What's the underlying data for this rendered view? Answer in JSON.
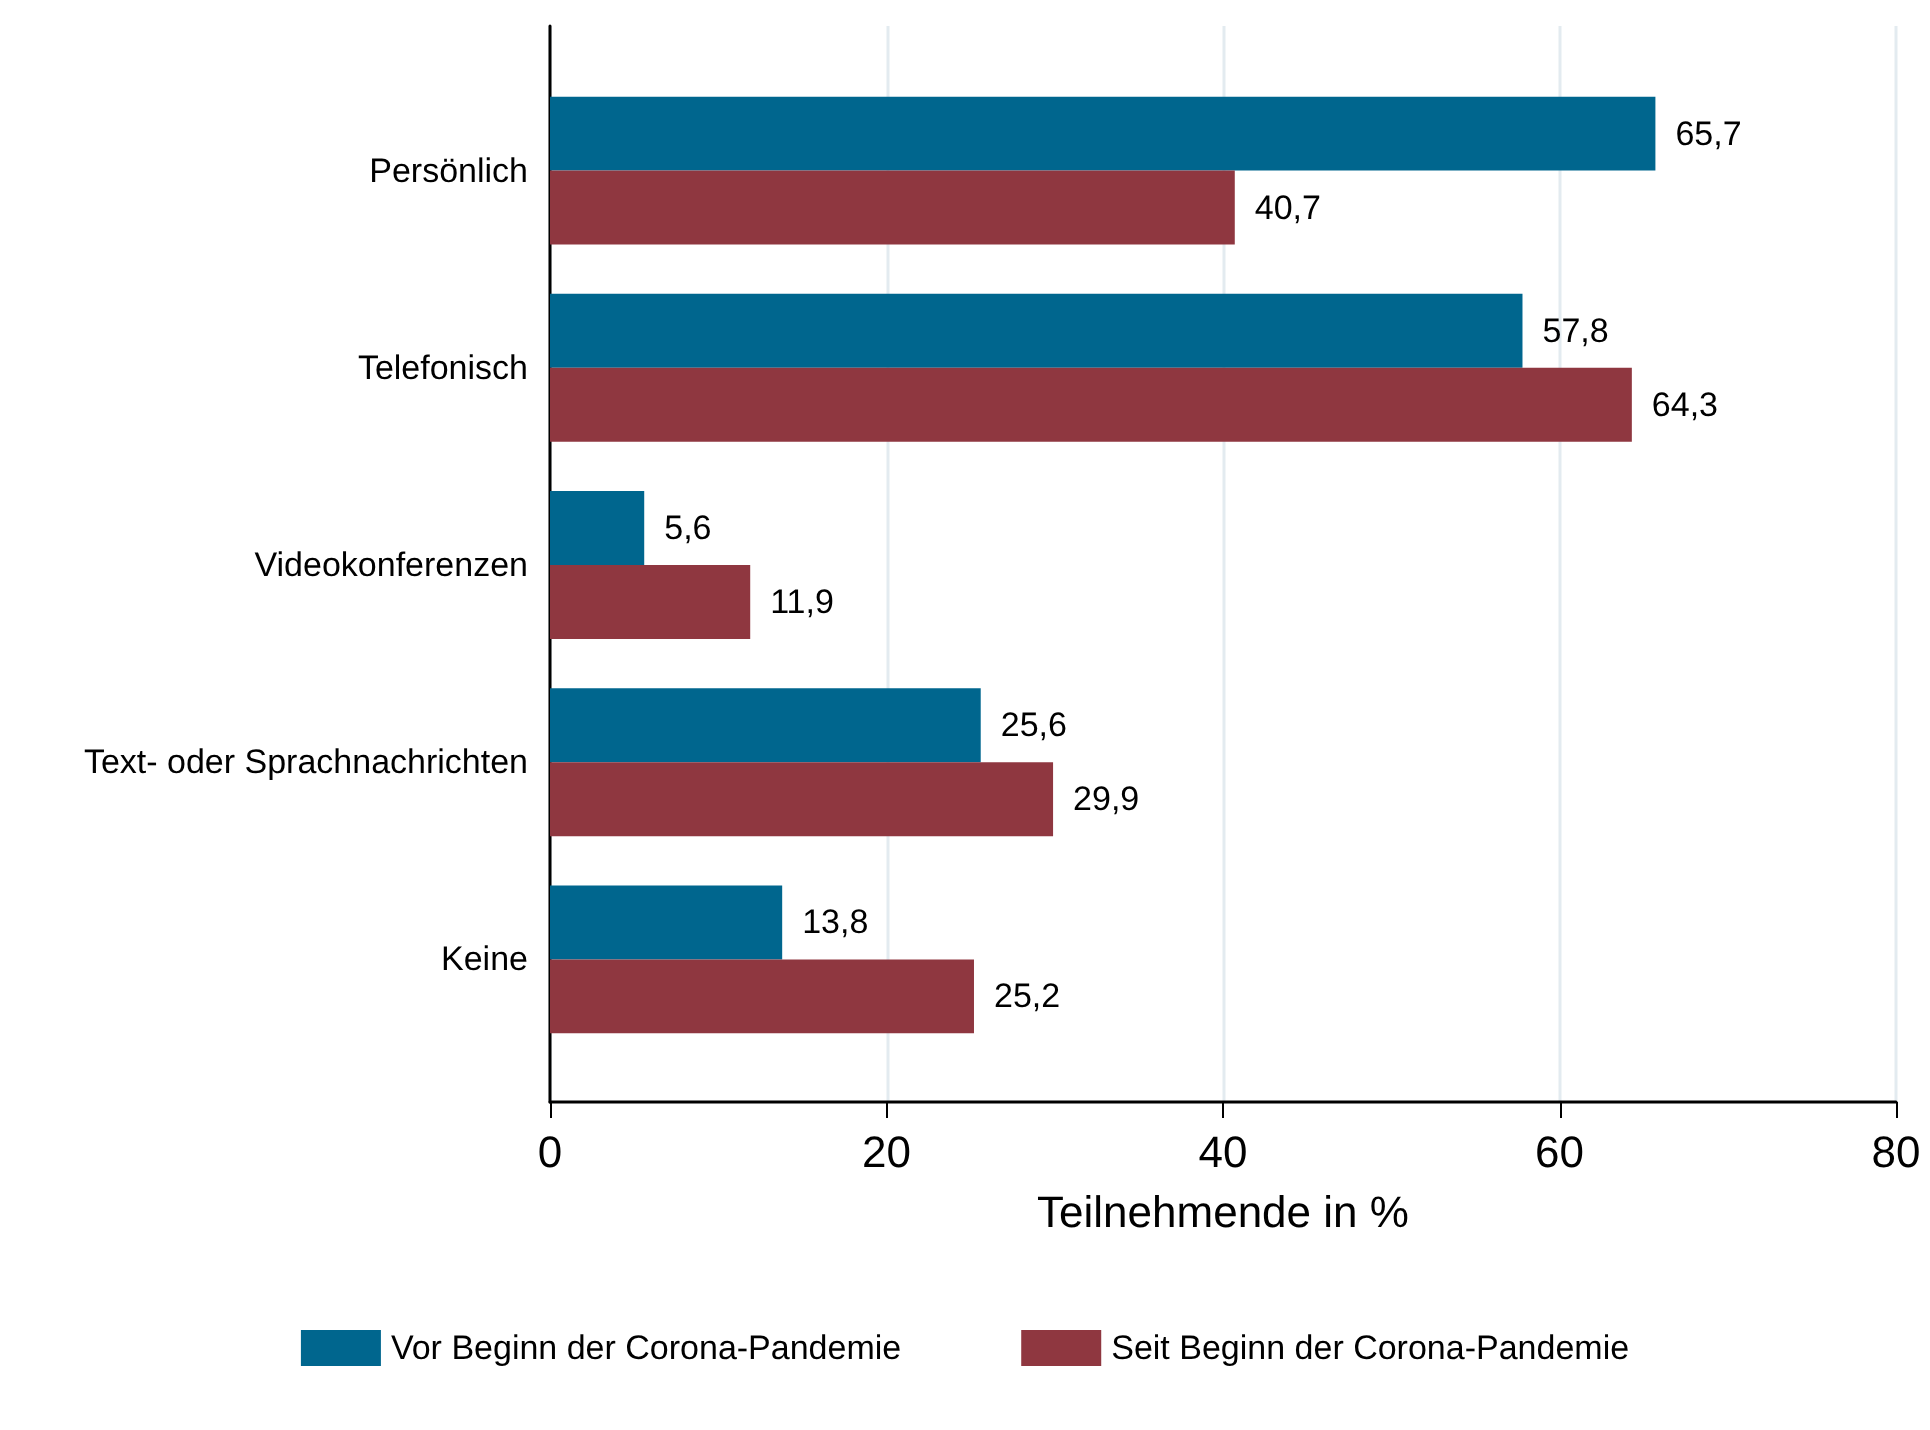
{
  "chart_data": {
    "type": "bar",
    "orientation": "horizontal",
    "categories": [
      "Persönlich",
      "Telefonisch",
      "Videokonferenzen",
      "Text- oder Sprachnachrichten",
      "Keine"
    ],
    "series": [
      {
        "name": "Vor Beginn der Corona-Pandemie",
        "color": "#00668e",
        "values": [
          65.7,
          57.8,
          5.6,
          25.6,
          13.8
        ],
        "value_labels": [
          "65,7",
          "57,8",
          "5,6",
          "25,6",
          "13,8"
        ]
      },
      {
        "name": "Seit Beginn der Corona-Pandemie",
        "color": "#8f3740",
        "values": [
          40.7,
          64.3,
          11.9,
          29.9,
          25.2
        ],
        "value_labels": [
          "40,7",
          "64,3",
          "11,9",
          "29,9",
          "25,2"
        ]
      }
    ],
    "xlabel": "Teilnehmende in %",
    "xlim": [
      0,
      80
    ],
    "xticks": [
      0,
      20,
      40,
      60,
      80
    ],
    "grid": "x",
    "legend": "bottom"
  }
}
